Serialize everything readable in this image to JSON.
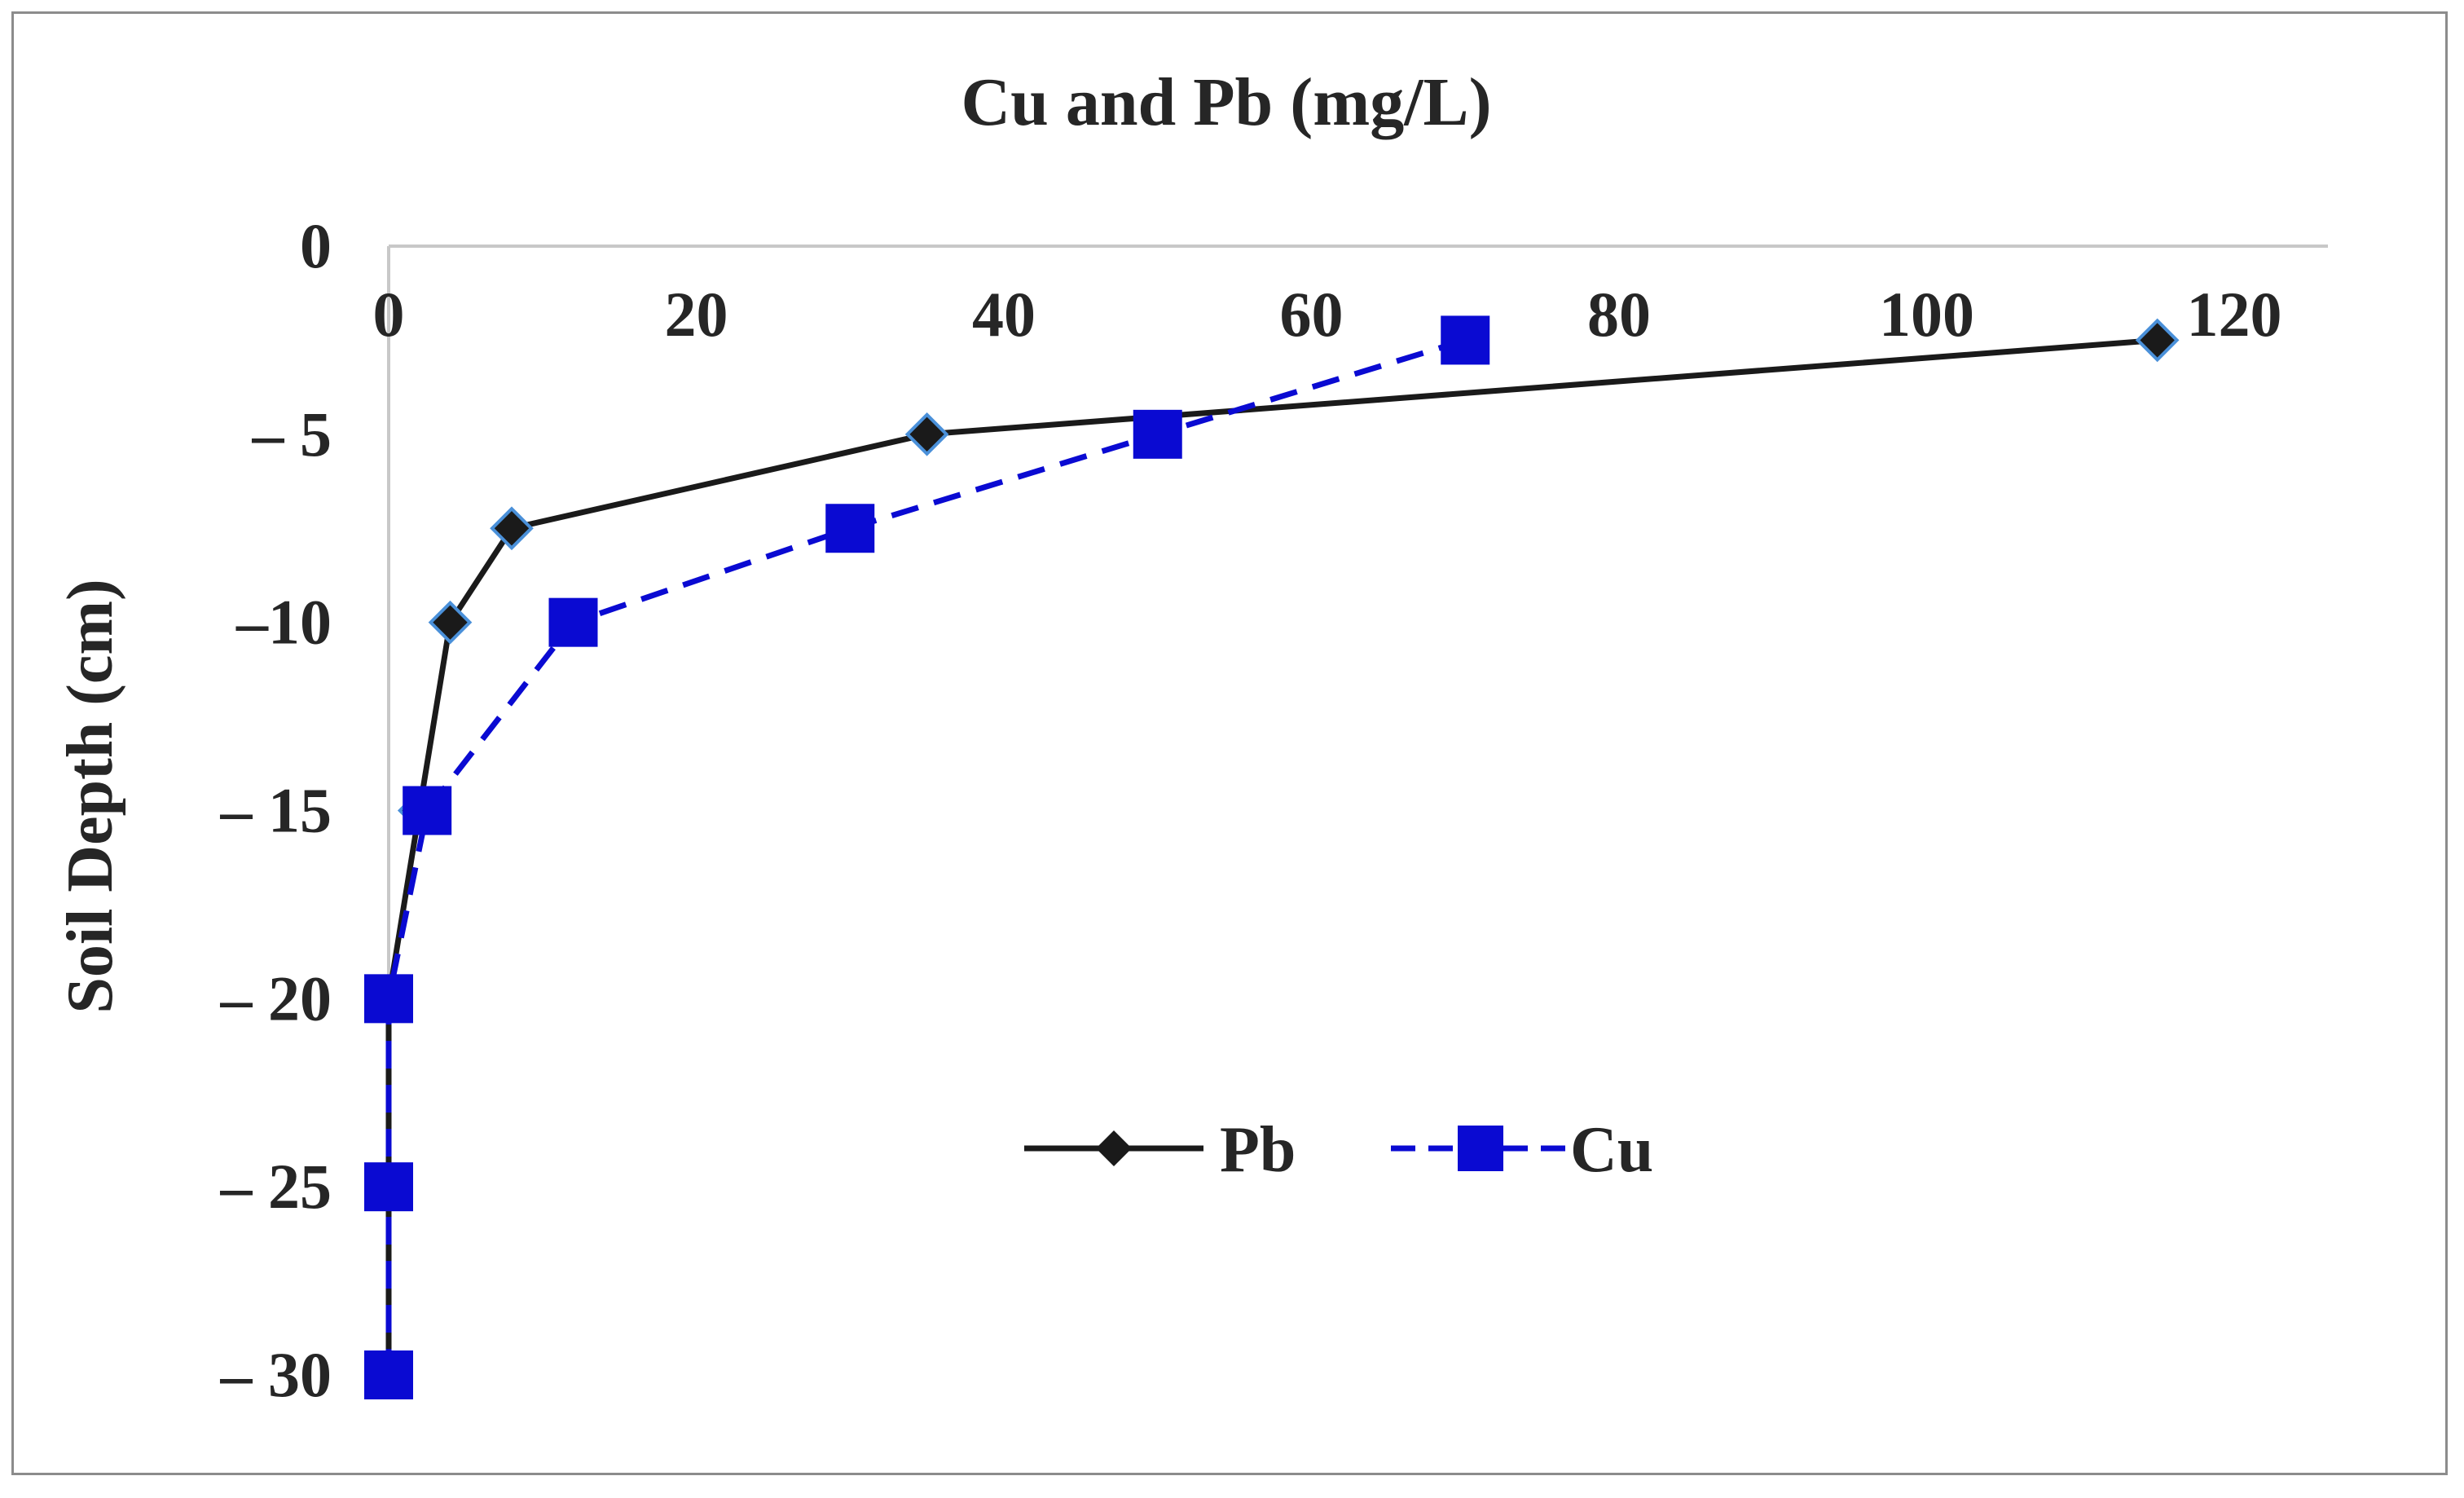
{
  "chart_data": {
    "type": "line",
    "title": "Cu and Pb (mg/L)",
    "xlabel": "",
    "ylabel": "Soil Depth (cm)",
    "xlim": [
      0,
      120
    ],
    "ylim": [
      -30,
      0
    ],
    "x_ticks": [
      "0",
      "20",
      "40",
      "60",
      "80",
      "100",
      "120"
    ],
    "y_ticks": [
      "0",
      "– 5",
      "–10",
      "– 15",
      "– 20",
      "– 25",
      "– 30"
    ],
    "x_tick_values": [
      0,
      20,
      40,
      60,
      80,
      100,
      120
    ],
    "y_tick_values": [
      0,
      -5,
      -10,
      -15,
      -20,
      -25,
      -30
    ],
    "x_axis_position": "top",
    "grid": false,
    "legend_position": "center-right",
    "series": [
      {
        "name": "Pb",
        "color": "#1a1a1a",
        "marker": "diamond",
        "line_style": "solid",
        "points": [
          {
            "x": 115,
            "y": -2.5
          },
          {
            "x": 35,
            "y": -5
          },
          {
            "x": 8,
            "y": -7.5
          },
          {
            "x": 4,
            "y": -10
          },
          {
            "x": 2,
            "y": -15
          },
          {
            "x": 0,
            "y": -20
          },
          {
            "x": 0,
            "y": -25
          },
          {
            "x": 0,
            "y": -30
          }
        ]
      },
      {
        "name": "Cu",
        "color": "#0a0ad2",
        "marker": "square",
        "line_style": "dashed",
        "points": [
          {
            "x": 70,
            "y": -2.5
          },
          {
            "x": 50,
            "y": -5
          },
          {
            "x": 30,
            "y": -7.5
          },
          {
            "x": 12,
            "y": -10
          },
          {
            "x": 2.5,
            "y": -15
          },
          {
            "x": 0,
            "y": -20
          },
          {
            "x": 0,
            "y": -25
          },
          {
            "x": 0,
            "y": -30
          }
        ]
      }
    ]
  }
}
